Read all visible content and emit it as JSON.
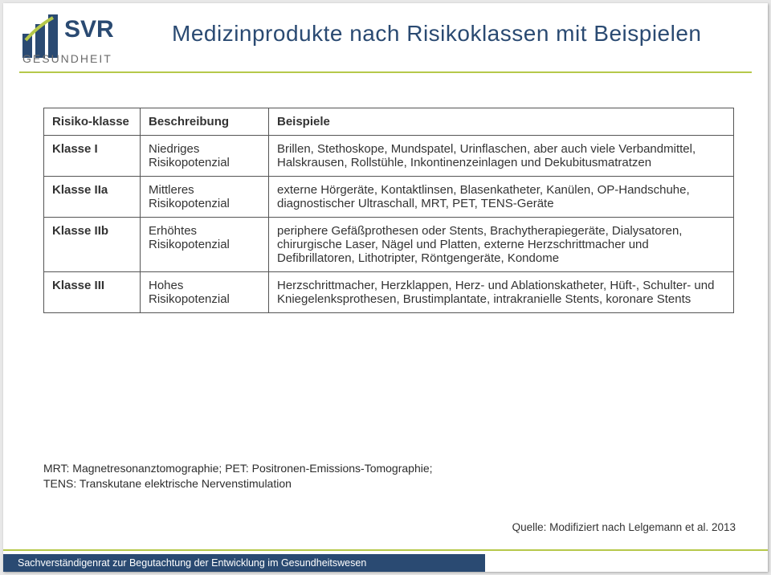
{
  "header": {
    "logo_top": "SVR",
    "logo_sub": "GESUNDHEIT",
    "title": "Medizinprodukte nach Risikoklassen mit Beispielen"
  },
  "table": {
    "head": {
      "c1": "Risiko-klasse",
      "c2": "Beschreibung",
      "c3": "Beispiele"
    },
    "rows": [
      {
        "c1": "Klasse I",
        "c2": "Niedriges Risikopotenzial",
        "c3": "Brillen, Stethoskope, Mundspatel, Urinflaschen, aber auch viele Verbandmittel, Halskrausen, Rollstühle, Inkontinenzeinlagen und Dekubitusmatratzen"
      },
      {
        "c1": "Klasse IIa",
        "c2": "Mittleres Risikopotenzial",
        "c3": "externe Hörgeräte, Kontaktlinsen, Blasenkatheter, Kanülen, OP-Handschuhe, diagnostischer Ultraschall, MRT, PET, TENS-Geräte"
      },
      {
        "c1": "Klasse IIb",
        "c2": "Erhöhtes Risikopotenzial",
        "c3": "periphere Gefäßprothesen oder Stents, Brachytherapiegeräte, Dialysatoren, chirurgische Laser, Nägel und Platten, externe Herzschrittmacher und Defibrillatoren, Lithotripter, Röntgengeräte, Kondome"
      },
      {
        "c1": "Klasse III",
        "c2": "Hohes Risikopotenzial",
        "c3": "Herzschrittmacher, Herzklappen, Herz- und Ablationskatheter, Hüft-, Schulter- und Kniegelenksprothesen, Brustimplantate, intrakranielle Stents, koronare Stents"
      }
    ]
  },
  "footnote": "MRT: Magnetresonanztomographie; PET: Positronen-Emissions-Tomographie;\nTENS: Transkutane elektrische Nervenstimulation",
  "source": "Quelle: Modifiziert nach Lelgemann et al. 2013",
  "footer": "Sachverständigenrat zur Begutachtung der Entwicklung im Gesundheitswesen",
  "colors": {
    "brand_blue": "#2a4a72",
    "accent_green": "#b6c84a"
  }
}
